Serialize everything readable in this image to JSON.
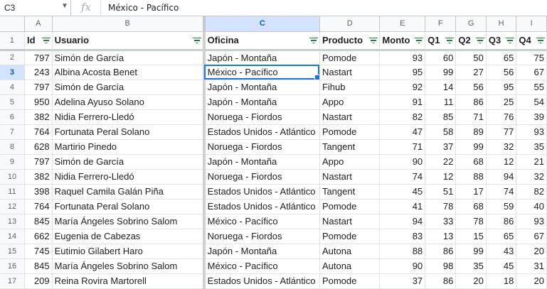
{
  "formula_bar": {
    "cell_ref": "C3",
    "fx_label": "fx",
    "content": "México - Pacífico"
  },
  "columns": [
    "A",
    "B",
    "C",
    "D",
    "E",
    "F",
    "G",
    "H",
    "I"
  ],
  "selected_column": "C",
  "selected_row": 3,
  "header_row": {
    "row_number": "1",
    "labels": [
      "Id",
      "Usuario",
      "Oficina",
      "Producto",
      "Monto",
      "Q1",
      "Q2",
      "Q3",
      "Q4"
    ]
  },
  "rows": [
    {
      "n": "2",
      "id": "797",
      "usuario": "Simón de García",
      "oficina": "Japón - Montaña",
      "producto": "Pomode",
      "monto": "93",
      "q1": "60",
      "q2": "50",
      "q3": "65",
      "q4": "75"
    },
    {
      "n": "3",
      "id": "243",
      "usuario": "Albina Acosta Benet",
      "oficina": "México - Pacífico",
      "producto": "Nastart",
      "monto": "95",
      "q1": "99",
      "q2": "27",
      "q3": "56",
      "q4": "67"
    },
    {
      "n": "4",
      "id": "797",
      "usuario": "Simón de García",
      "oficina": "Japón - Montaña",
      "producto": "Fihub",
      "monto": "92",
      "q1": "14",
      "q2": "56",
      "q3": "95",
      "q4": "55"
    },
    {
      "n": "5",
      "id": "950",
      "usuario": "Adelina Ayuso Solano",
      "oficina": "Japón - Montaña",
      "producto": "Appo",
      "monto": "91",
      "q1": "11",
      "q2": "86",
      "q3": "25",
      "q4": "54"
    },
    {
      "n": "6",
      "id": "382",
      "usuario": "Nidia Ferrero-Lledó",
      "oficina": "Noruega - Fiordos",
      "producto": "Nastart",
      "monto": "82",
      "q1": "85",
      "q2": "71",
      "q3": "76",
      "q4": "39"
    },
    {
      "n": "7",
      "id": "764",
      "usuario": "Fortunata Peral Solano",
      "oficina": "Estados Unidos - Atlántico",
      "producto": "Pomode",
      "monto": "47",
      "q1": "58",
      "q2": "89",
      "q3": "77",
      "q4": "93"
    },
    {
      "n": "8",
      "id": "628",
      "usuario": "Martirio Pinedo",
      "oficina": "Noruega - Fiordos",
      "producto": "Tangent",
      "monto": "71",
      "q1": "37",
      "q2": "99",
      "q3": "32",
      "q4": "35"
    },
    {
      "n": "9",
      "id": "797",
      "usuario": "Simón de García",
      "oficina": "Japón - Montaña",
      "producto": "Appo",
      "monto": "90",
      "q1": "22",
      "q2": "68",
      "q3": "12",
      "q4": "21"
    },
    {
      "n": "10",
      "id": "382",
      "usuario": "Nidia Ferrero-Lledó",
      "oficina": "Noruega - Fiordos",
      "producto": "Nastart",
      "monto": "74",
      "q1": "12",
      "q2": "88",
      "q3": "94",
      "q4": "32"
    },
    {
      "n": "11",
      "id": "398",
      "usuario": "Raquel Camila Galán Piña",
      "oficina": "Estados Unidos - Atlántico",
      "producto": "Tangent",
      "monto": "45",
      "q1": "51",
      "q2": "17",
      "q3": "74",
      "q4": "82"
    },
    {
      "n": "12",
      "id": "764",
      "usuario": "Fortunata Peral Solano",
      "oficina": "Estados Unidos - Atlántico",
      "producto": "Pomode",
      "monto": "41",
      "q1": "78",
      "q2": "68",
      "q3": "59",
      "q4": "40"
    },
    {
      "n": "13",
      "id": "845",
      "usuario": "María Ángeles Sobrino Salom",
      "oficina": "México - Pacífico",
      "producto": "Nastart",
      "monto": "94",
      "q1": "33",
      "q2": "78",
      "q3": "86",
      "q4": "93"
    },
    {
      "n": "14",
      "id": "662",
      "usuario": "Eugenia de Cabezas",
      "oficina": "Noruega - Fiordos",
      "producto": "Pomode",
      "monto": "83",
      "q1": "13",
      "q2": "15",
      "q3": "65",
      "q4": "67"
    },
    {
      "n": "15",
      "id": "745",
      "usuario": "Eutimio Gilabert Haro",
      "oficina": "Japón - Montaña",
      "producto": "Autona",
      "monto": "88",
      "q1": "86",
      "q2": "99",
      "q3": "43",
      "q4": "20"
    },
    {
      "n": "16",
      "id": "845",
      "usuario": "María Ángeles Sobrino Salom",
      "oficina": "México - Pacífico",
      "producto": "Autona",
      "monto": "90",
      "q1": "98",
      "q2": "35",
      "q3": "45",
      "q4": "31"
    },
    {
      "n": "17",
      "id": "209",
      "usuario": "Reina Rovira Martorell",
      "oficina": "Estados Unidos - Atlántico",
      "producto": "Pomode",
      "monto": "37",
      "q1": "86",
      "q2": "20",
      "q3": "18",
      "q4": "20"
    }
  ]
}
